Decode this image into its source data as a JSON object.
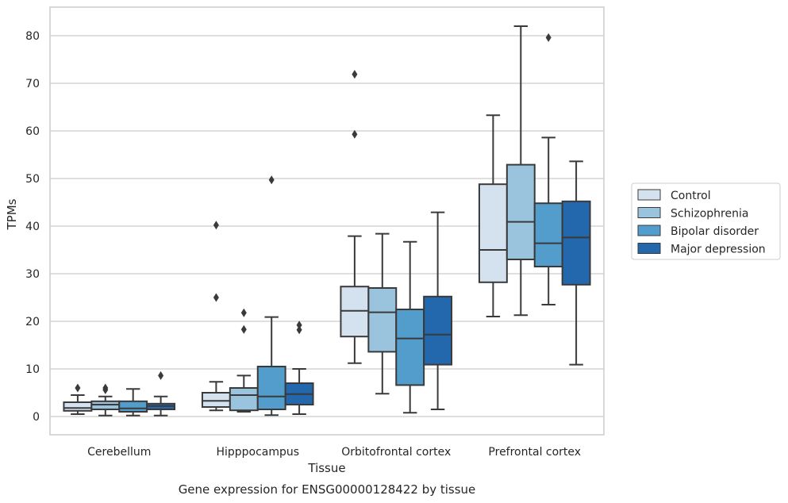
{
  "chart_data": {
    "type": "boxplot",
    "xlabel": "Tissue",
    "ylabel": "TPMs",
    "caption": "Gene expression for ENSG00000128422 by tissue",
    "ylim": [
      -4,
      86
    ],
    "yticks": [
      0,
      10,
      20,
      30,
      40,
      50,
      60,
      70,
      80
    ],
    "grid": "horizontal",
    "legend_position": "right",
    "categories": [
      "Cerebellum",
      "Hipppocampus",
      "Orbitofrontal cortex",
      "Prefrontal cortex"
    ],
    "series": [
      {
        "name": "Control",
        "color": "#d4e2f0",
        "boxes": [
          {
            "whislo": 0.5,
            "q1": 1.2,
            "med": 1.8,
            "q3": 3.0,
            "whishi": 4.5,
            "fliers": [
              6.0
            ]
          },
          {
            "whislo": 1.3,
            "q1": 2.0,
            "med": 3.3,
            "q3": 5.0,
            "whishi": 7.3,
            "fliers": [
              25.0,
              40.2
            ]
          },
          {
            "whislo": 11.2,
            "q1": 16.8,
            "med": 22.2,
            "q3": 27.3,
            "whishi": 37.9,
            "fliers": [
              59.3,
              71.9
            ]
          },
          {
            "whislo": 21.0,
            "q1": 28.2,
            "med": 35.0,
            "q3": 48.8,
            "whishi": 63.3,
            "fliers": []
          }
        ]
      },
      {
        "name": "Schizophrenia",
        "color": "#9ac3de",
        "boxes": [
          {
            "whislo": 0.2,
            "q1": 1.5,
            "med": 2.5,
            "q3": 3.2,
            "whishi": 4.2,
            "fliers": [
              5.6,
              6.0
            ]
          },
          {
            "whislo": 1.0,
            "q1": 1.3,
            "med": 4.5,
            "q3": 6.0,
            "whishi": 8.6,
            "fliers": [
              18.3,
              21.8
            ]
          },
          {
            "whislo": 4.8,
            "q1": 13.6,
            "med": 21.9,
            "q3": 27.0,
            "whishi": 38.4,
            "fliers": []
          },
          {
            "whislo": 21.3,
            "q1": 33.0,
            "med": 40.9,
            "q3": 52.9,
            "whishi": 82.0,
            "fliers": []
          }
        ]
      },
      {
        "name": "Bipolar disorder",
        "color": "#529dcc",
        "boxes": [
          {
            "whislo": 0.2,
            "q1": 1.0,
            "med": 1.7,
            "q3": 3.2,
            "whishi": 5.8,
            "fliers": []
          },
          {
            "whislo": 0.3,
            "q1": 1.5,
            "med": 4.2,
            "q3": 10.5,
            "whishi": 20.9,
            "fliers": [
              49.7
            ]
          },
          {
            "whislo": 0.8,
            "q1": 6.6,
            "med": 16.4,
            "q3": 22.5,
            "whishi": 36.7,
            "fliers": []
          },
          {
            "whislo": 23.5,
            "q1": 31.5,
            "med": 36.4,
            "q3": 44.8,
            "whishi": 58.6,
            "fliers": [
              79.6
            ]
          }
        ]
      },
      {
        "name": "Major depression",
        "color": "#2367ac",
        "boxes": [
          {
            "whislo": 0.2,
            "q1": 1.5,
            "med": 2.2,
            "q3": 2.7,
            "whishi": 4.2,
            "fliers": [
              8.6
            ]
          },
          {
            "whislo": 0.5,
            "q1": 2.5,
            "med": 4.7,
            "q3": 7.0,
            "whishi": 10.0,
            "fliers": [
              18.2,
              19.2
            ]
          },
          {
            "whislo": 1.5,
            "q1": 10.9,
            "med": 17.2,
            "q3": 25.2,
            "whishi": 42.9,
            "fliers": []
          },
          {
            "whislo": 10.9,
            "q1": 27.7,
            "med": 37.6,
            "q3": 45.2,
            "whishi": 53.6,
            "fliers": []
          }
        ]
      }
    ]
  }
}
